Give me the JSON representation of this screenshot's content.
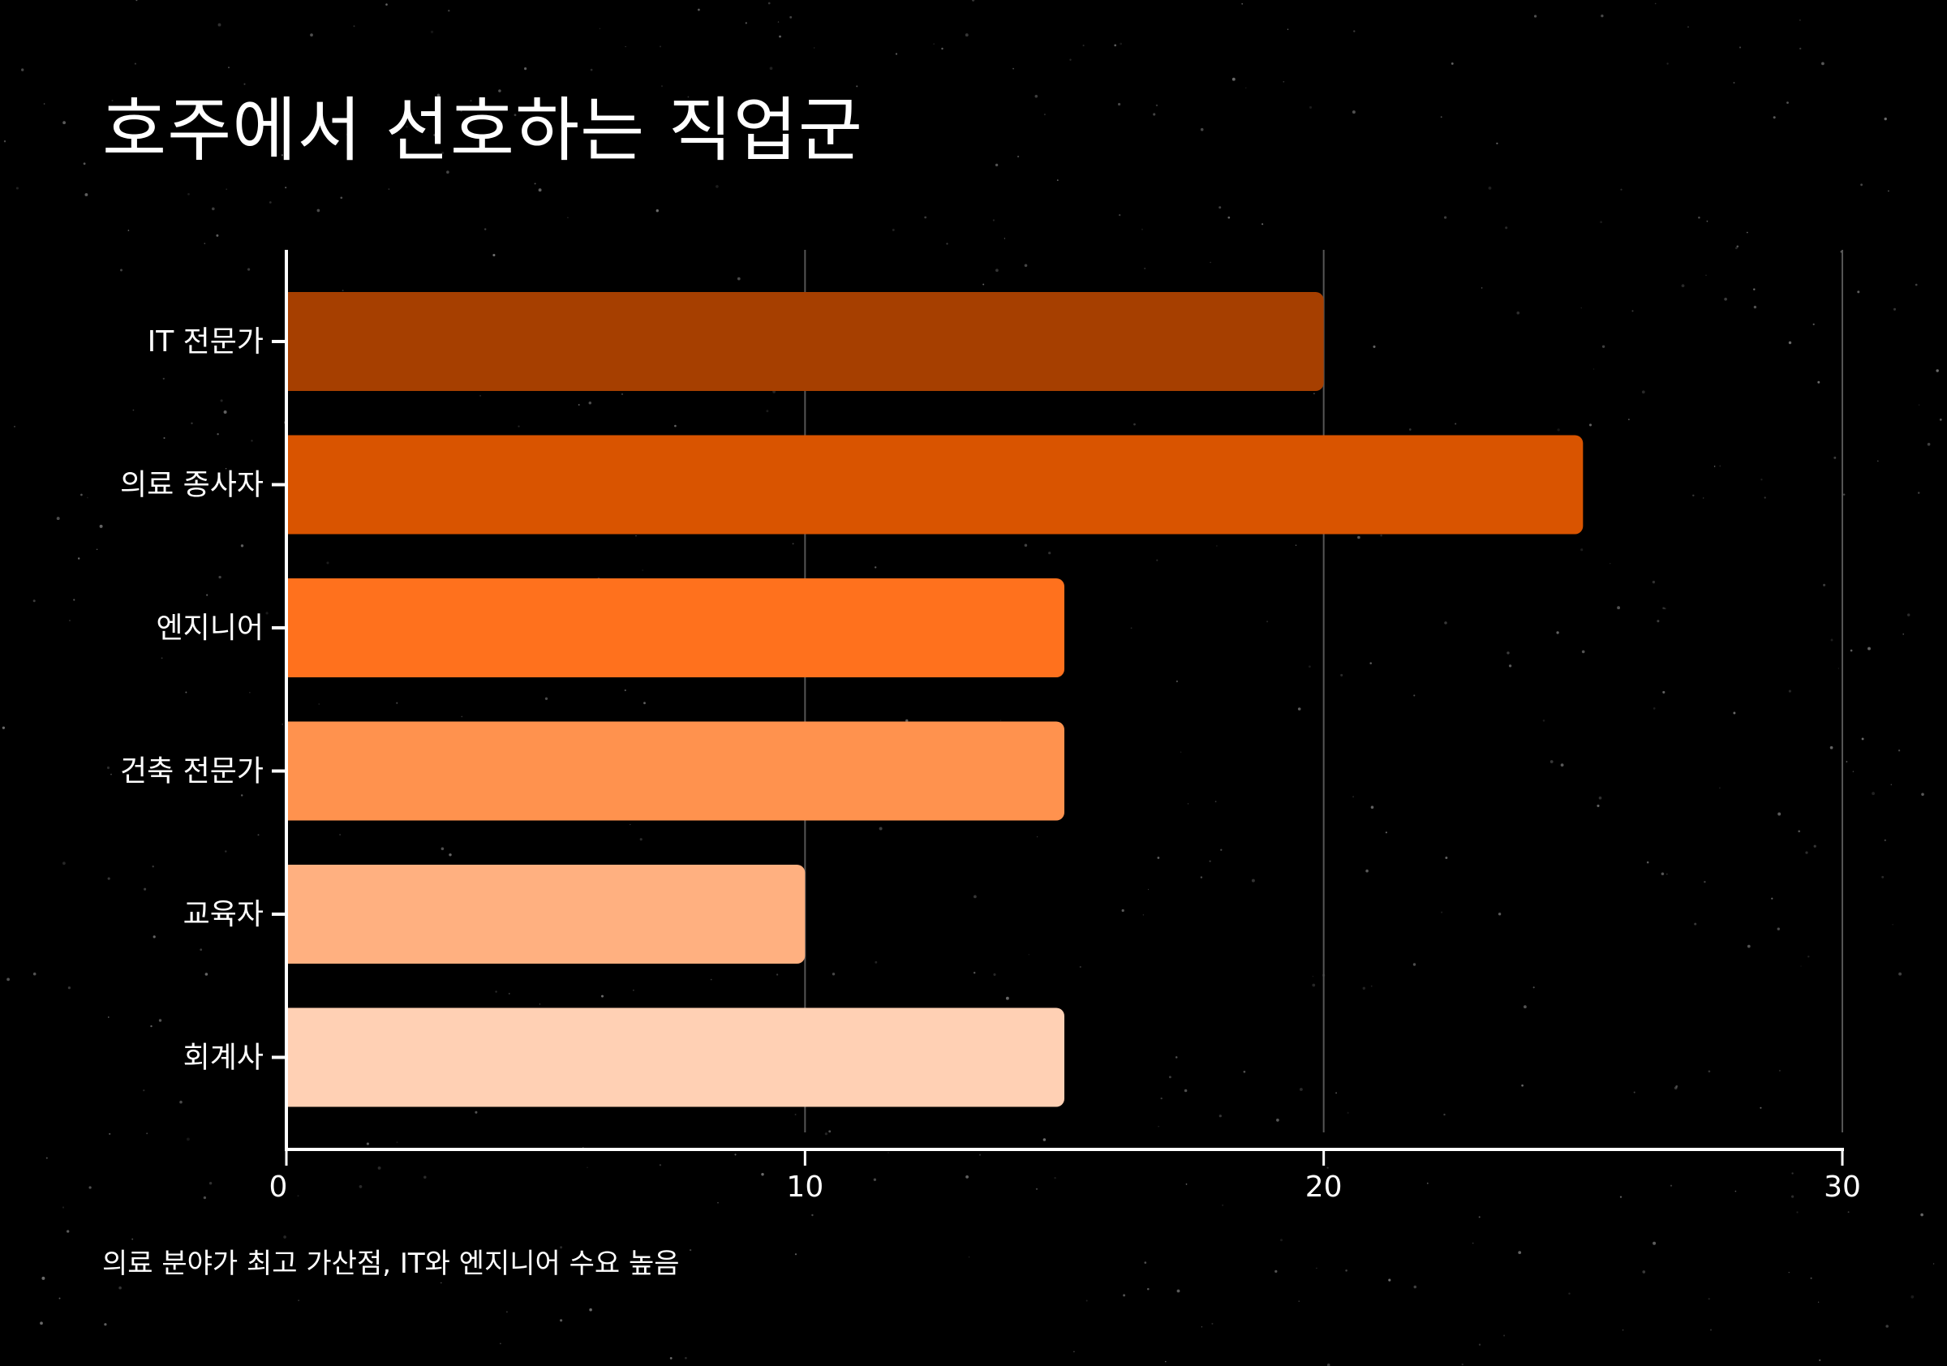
{
  "title": "호주에서 선호하는 직업군",
  "caption": "의료 분야가 최고 가산점, IT와 엔지니어 수요 높음",
  "colors": {
    "background": "#000000",
    "axis": "#ffffff",
    "gridline": "#555555",
    "text": "#ffffff"
  },
  "chart_data": {
    "type": "bar",
    "orientation": "horizontal",
    "categories": [
      "IT 전문가",
      "의료 종사자",
      "엔지니어",
      "건축 전문가",
      "교육자",
      "회계사"
    ],
    "values": [
      20,
      25,
      15,
      15,
      10,
      15
    ],
    "bar_colors": [
      "#a63f00",
      "#d95400",
      "#ff711d",
      "#ff924e",
      "#ffb080",
      "#ffd0b4"
    ],
    "xlim": [
      0,
      30
    ],
    "xticks": [
      0,
      10,
      20,
      30
    ],
    "xtick_labels": [
      "0",
      "10",
      "20",
      "30"
    ],
    "grid": true
  }
}
